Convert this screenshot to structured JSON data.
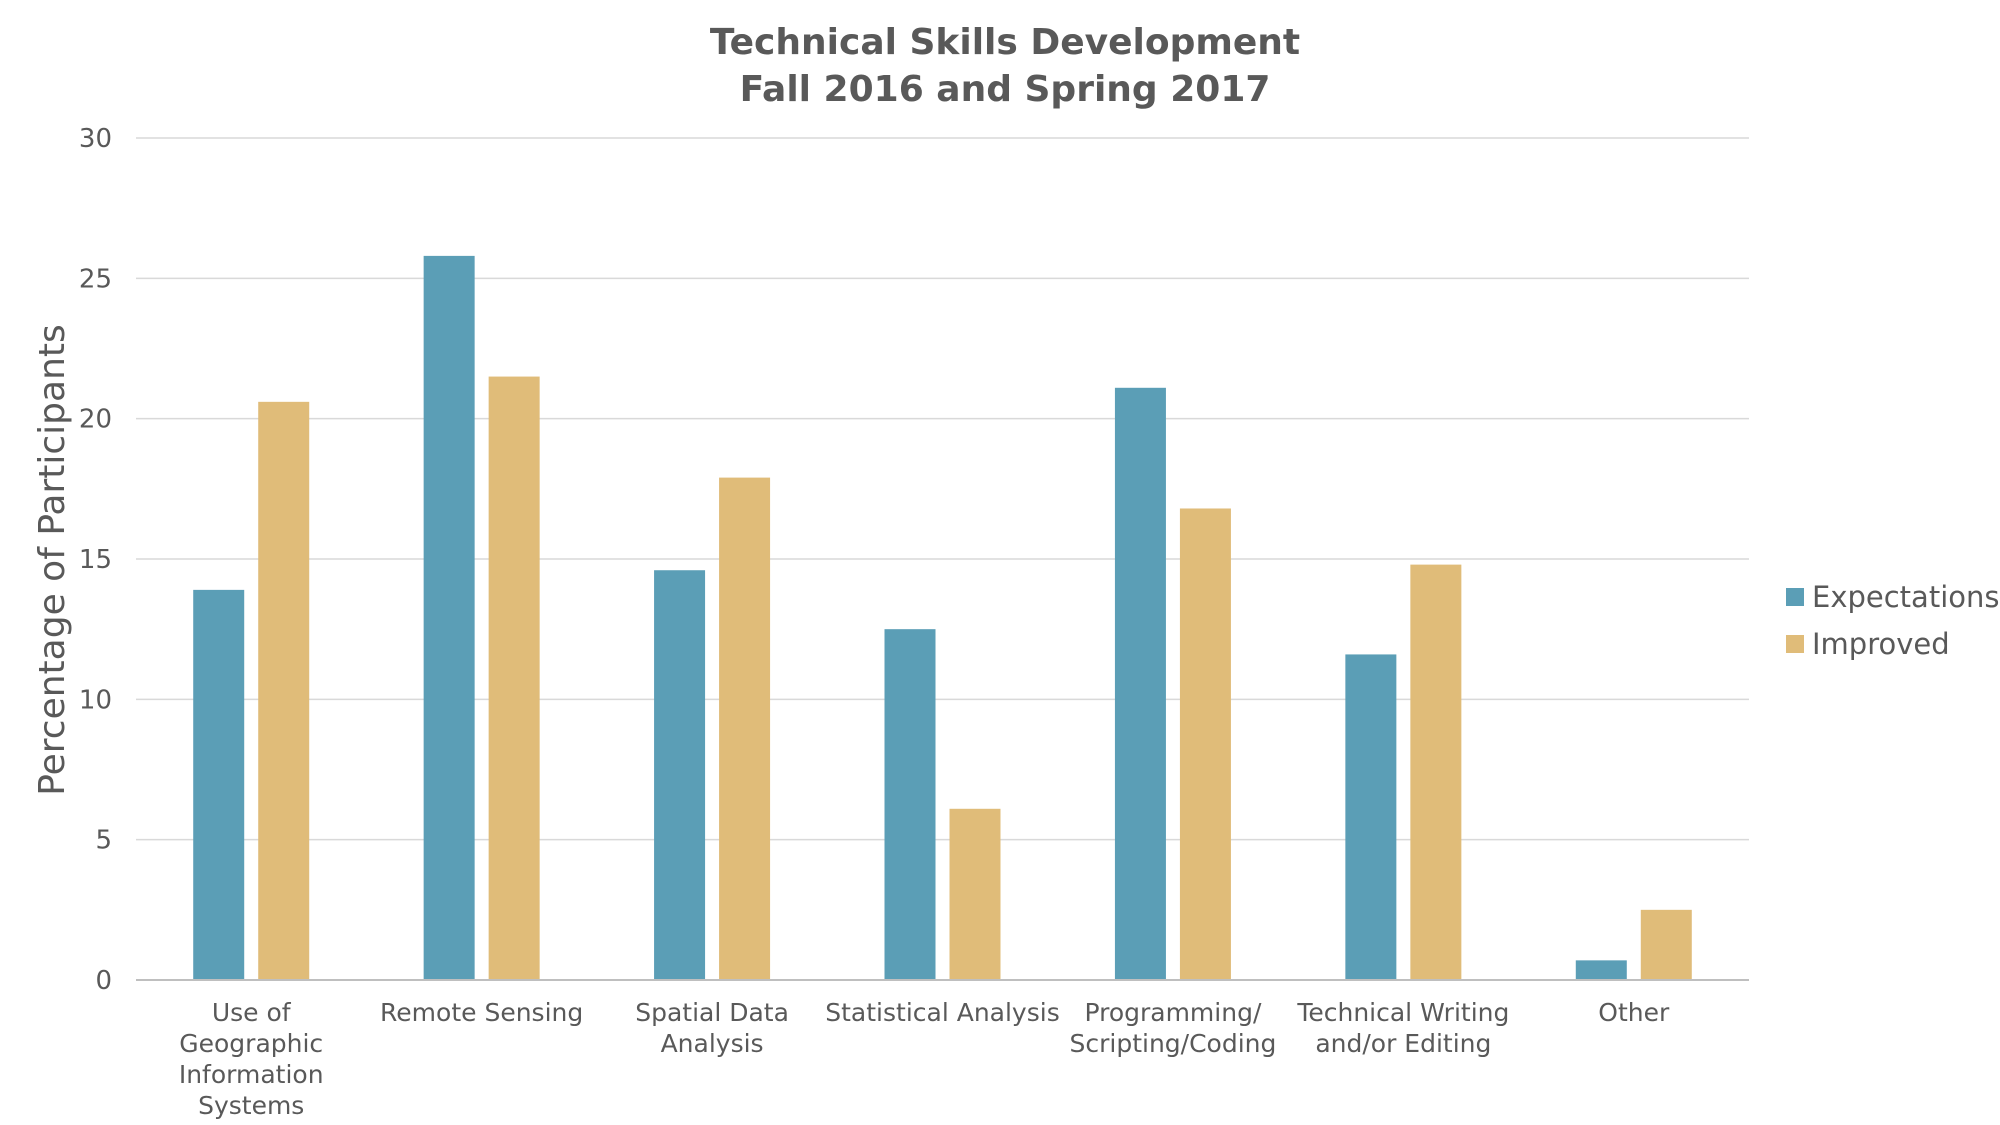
{
  "chart_data": {
    "type": "bar",
    "title": [
      "Technical Skills Development",
      "Fall 2016 and Spring 2017"
    ],
    "ylabel": "Percentage of Participants",
    "xlabel": "",
    "ylim": [
      0,
      30
    ],
    "yticks": [
      0,
      5,
      10,
      15,
      20,
      25,
      30
    ],
    "grid": true,
    "legend_position": "right",
    "categories": [
      [
        "Use of",
        "Geographic",
        "Information",
        "Systems"
      ],
      [
        "Remote Sensing"
      ],
      [
        "Spatial Data",
        "Analysis"
      ],
      [
        "Statistical Analysis"
      ],
      [
        "Programming/",
        "Scripting/Coding"
      ],
      [
        "Technical Writing",
        "and/or Editing"
      ],
      [
        "Other"
      ]
    ],
    "series": [
      {
        "name": "Expectations",
        "color": "#5B9EB6",
        "values": [
          13.9,
          25.8,
          14.6,
          12.5,
          21.1,
          11.6,
          0.7
        ]
      },
      {
        "name": "Improved",
        "color": "#E0BC79",
        "values": [
          20.6,
          21.5,
          17.9,
          6.1,
          16.8,
          14.8,
          2.5
        ]
      }
    ]
  }
}
